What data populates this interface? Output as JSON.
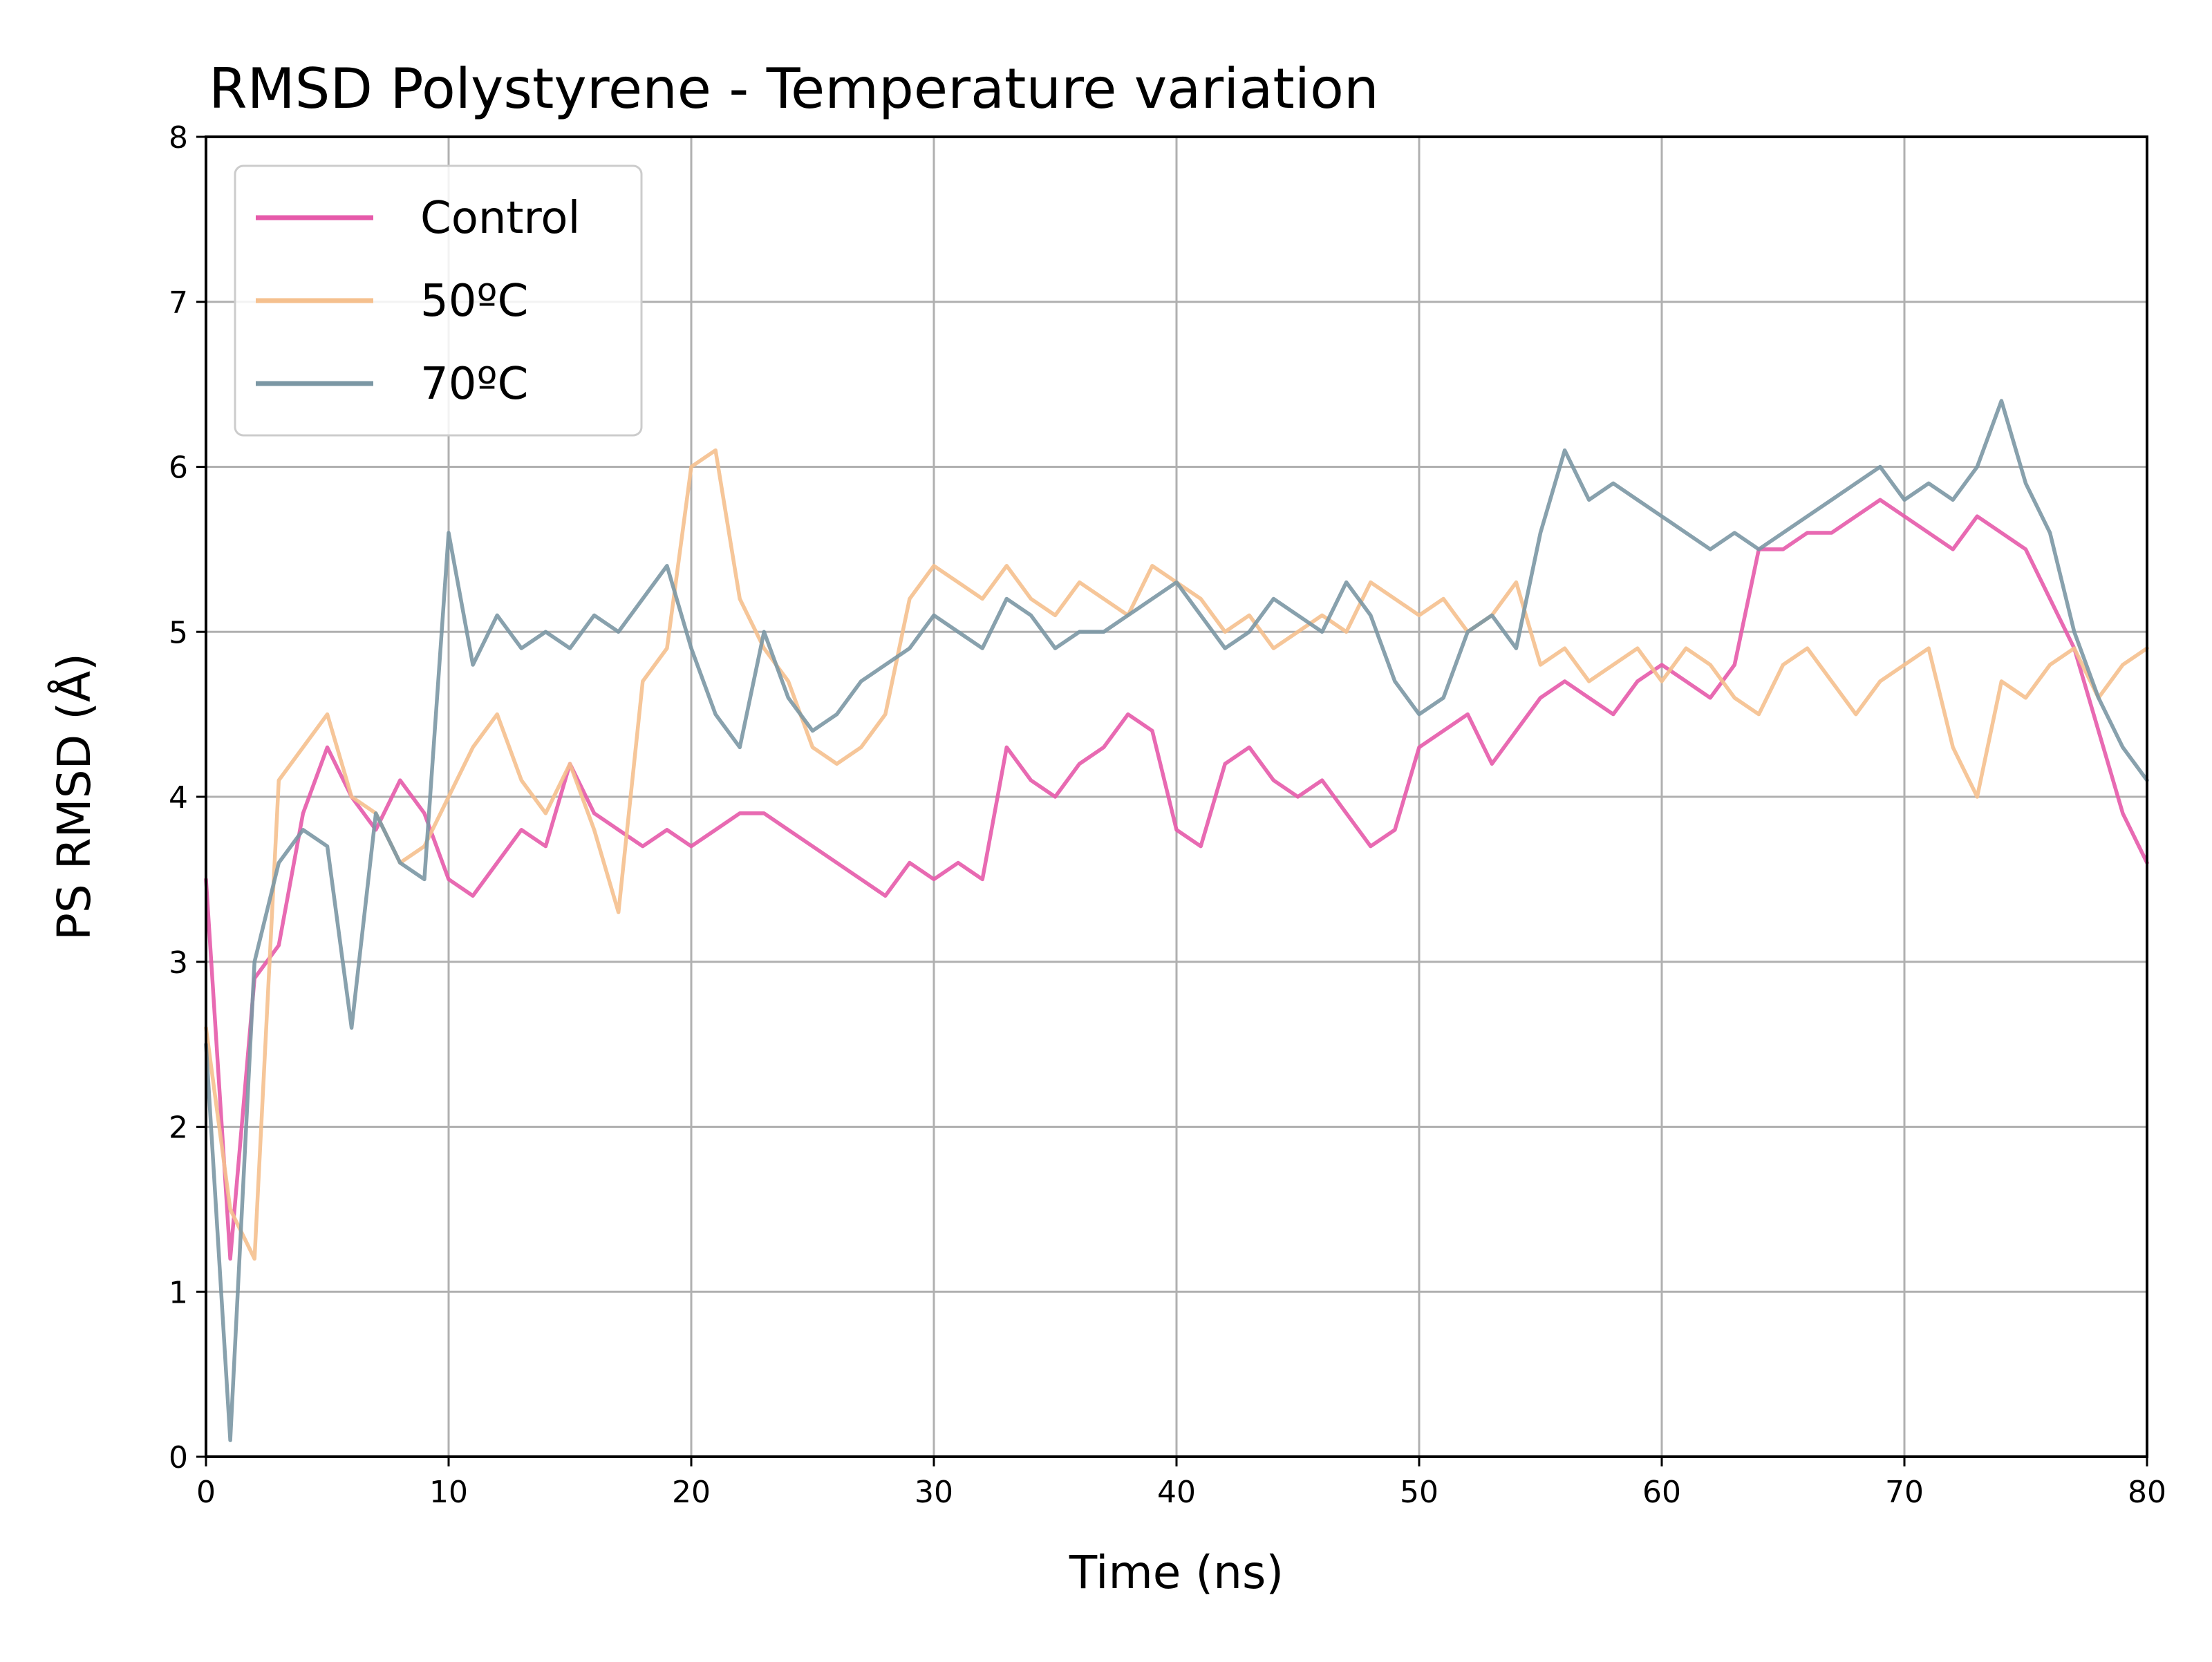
{
  "chart_data": {
    "type": "line",
    "title": "RMSD Polystyrene - Temperature variation",
    "xlabel": "Time (ns)",
    "ylabel": "PS RMSD (Å)",
    "xlim": [
      0,
      80
    ],
    "ylim": [
      0,
      8
    ],
    "xticks": [
      "0",
      "10",
      "20",
      "30",
      "40",
      "50",
      "60",
      "70",
      "80"
    ],
    "yticks": [
      "0",
      "1",
      "2",
      "3",
      "4",
      "5",
      "6",
      "7",
      "8"
    ],
    "grid": true,
    "legend_position": "top-left",
    "x": [
      0,
      1,
      2,
      3,
      4,
      5,
      6,
      7,
      8,
      9,
      10,
      11,
      12,
      13,
      14,
      15,
      16,
      17,
      18,
      19,
      20,
      21,
      22,
      23,
      24,
      25,
      26,
      27,
      28,
      29,
      30,
      31,
      32,
      33,
      34,
      35,
      36,
      37,
      38,
      39,
      40,
      41,
      42,
      43,
      44,
      45,
      46,
      47,
      48,
      49,
      50,
      51,
      52,
      53,
      54,
      55,
      56,
      57,
      58,
      59,
      60,
      61,
      62,
      63,
      64,
      65,
      66,
      67,
      68,
      69,
      70,
      71,
      72,
      73,
      74,
      75,
      76,
      77,
      78,
      79,
      80
    ],
    "series": [
      {
        "name": "Control",
        "color": "#e65aaa",
        "values": [
          3.5,
          1.2,
          2.9,
          3.1,
          3.9,
          4.3,
          4.0,
          3.8,
          4.1,
          3.9,
          3.5,
          3.4,
          3.6,
          3.8,
          3.7,
          4.2,
          3.9,
          3.8,
          3.7,
          3.8,
          3.7,
          3.8,
          3.9,
          3.9,
          3.8,
          3.7,
          3.6,
          3.5,
          3.4,
          3.6,
          3.5,
          3.6,
          3.5,
          4.3,
          4.1,
          4.0,
          4.2,
          4.3,
          4.5,
          4.4,
          3.8,
          3.7,
          4.2,
          4.3,
          4.1,
          4.0,
          4.1,
          3.9,
          3.7,
          3.8,
          4.3,
          4.4,
          4.5,
          4.2,
          4.4,
          4.6,
          4.7,
          4.6,
          4.5,
          4.7,
          4.8,
          4.7,
          4.6,
          4.8,
          5.5,
          5.5,
          5.6,
          5.6,
          5.7,
          5.8,
          5.7,
          5.6,
          5.5,
          5.7,
          5.6,
          5.5,
          5.2,
          4.9,
          4.4,
          3.9,
          3.6
        ]
      },
      {
        "name": "50ºC",
        "color": "#f5c08e",
        "values": [
          2.6,
          1.5,
          1.2,
          4.1,
          4.3,
          4.5,
          4.0,
          3.9,
          3.6,
          3.7,
          4.0,
          4.3,
          4.5,
          4.1,
          3.9,
          4.2,
          3.8,
          3.3,
          4.7,
          4.9,
          6.0,
          6.1,
          5.2,
          4.9,
          4.7,
          4.3,
          4.2,
          4.3,
          4.5,
          5.2,
          5.4,
          5.3,
          5.2,
          5.4,
          5.2,
          5.1,
          5.3,
          5.2,
          5.1,
          5.4,
          5.3,
          5.2,
          5.0,
          5.1,
          4.9,
          5.0,
          5.1,
          5.0,
          5.3,
          5.2,
          5.1,
          5.2,
          5.0,
          5.1,
          5.3,
          4.8,
          4.9,
          4.7,
          4.8,
          4.9,
          4.7,
          4.9,
          4.8,
          4.6,
          4.5,
          4.8,
          4.9,
          4.7,
          4.5,
          4.7,
          4.8,
          4.9,
          4.3,
          4.0,
          4.7,
          4.6,
          4.8,
          4.9,
          4.6,
          4.8,
          4.9
        ]
      },
      {
        "name": "70ºC",
        "color": "#7b97a4",
        "values": [
          2.5,
          0.1,
          3.0,
          3.6,
          3.8,
          3.7,
          2.6,
          3.9,
          3.6,
          3.5,
          5.6,
          4.8,
          5.1,
          4.9,
          5.0,
          4.9,
          5.1,
          5.0,
          5.2,
          5.4,
          4.9,
          4.5,
          4.3,
          5.0,
          4.6,
          4.4,
          4.5,
          4.7,
          4.8,
          4.9,
          5.1,
          5.0,
          4.9,
          5.2,
          5.1,
          4.9,
          5.0,
          5.0,
          5.1,
          5.2,
          5.3,
          5.1,
          4.9,
          5.0,
          5.2,
          5.1,
          5.0,
          5.3,
          5.1,
          4.7,
          4.5,
          4.6,
          5.0,
          5.1,
          4.9,
          5.6,
          6.1,
          5.8,
          5.9,
          5.8,
          5.7,
          5.6,
          5.5,
          5.6,
          5.5,
          5.6,
          5.7,
          5.8,
          5.9,
          6.0,
          5.8,
          5.9,
          5.8,
          6.0,
          6.4,
          5.9,
          5.6,
          5.0,
          4.6,
          4.3,
          4.1
        ]
      }
    ]
  }
}
